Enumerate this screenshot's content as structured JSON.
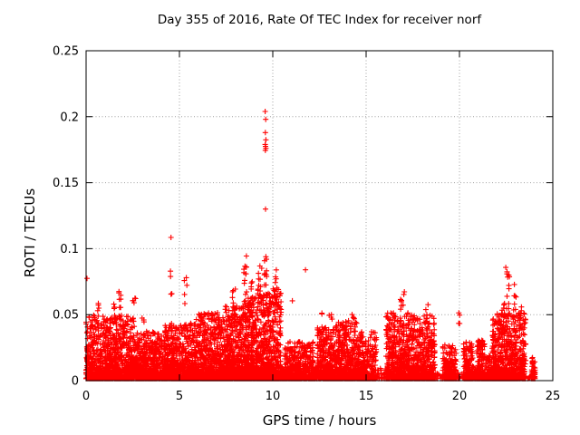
{
  "background": "#ffffff",
  "chart_data": {
    "type": "scatter",
    "title": "Day 355 of 2016, Rate Of TEC Index for receiver norf",
    "xlabel": "GPS time / hours",
    "ylabel": "ROTI / TECUs",
    "xlim": [
      0,
      25
    ],
    "ylim": [
      0,
      0.25
    ],
    "xtick_values": [
      0,
      5,
      10,
      15,
      20,
      25
    ],
    "xtick_labels": [
      "0",
      "5",
      "10",
      "15",
      "20",
      "25"
    ],
    "ytick_values": [
      0,
      0.05,
      0.1,
      0.15,
      0.2,
      0.25
    ],
    "ytick_labels": [
      "0",
      "0.05",
      "0.1",
      "0.15",
      "0.2",
      "0.25"
    ],
    "grid": "dotted",
    "legend": "none",
    "marker": "plus",
    "marker_color": "#ff0000",
    "grid_color": "#a0a0a0",
    "axis_color": "#000000",
    "series_name": "ROTI",
    "band_format": "[t_start_hr, t_end_hr, n_points, y_max_TECU] - dense scatter mass hugging y=0",
    "dense_bands": [
      [
        0.0,
        2.6,
        1100,
        0.048
      ],
      [
        2.6,
        4.2,
        640,
        0.036
      ],
      [
        4.2,
        5.9,
        700,
        0.042
      ],
      [
        5.9,
        7.45,
        720,
        0.05
      ],
      [
        7.45,
        8.3,
        420,
        0.055
      ],
      [
        8.3,
        9.1,
        420,
        0.062
      ],
      [
        9.1,
        10.45,
        660,
        0.068
      ],
      [
        10.45,
        10.62,
        40,
        0.012
      ],
      [
        10.62,
        12.18,
        520,
        0.028
      ],
      [
        12.18,
        12.38,
        35,
        0.01
      ],
      [
        12.38,
        13.5,
        420,
        0.04
      ],
      [
        13.5,
        14.5,
        400,
        0.044
      ],
      [
        14.5,
        15.55,
        380,
        0.036
      ],
      [
        15.55,
        16.05,
        25,
        0.008
      ],
      [
        16.05,
        17.45,
        520,
        0.05
      ],
      [
        17.45,
        18.68,
        460,
        0.048
      ],
      [
        18.68,
        19.1,
        12,
        0.006
      ],
      [
        19.1,
        19.82,
        240,
        0.026
      ],
      [
        19.82,
        20.22,
        14,
        0.008
      ],
      [
        20.22,
        20.72,
        170,
        0.028
      ],
      [
        20.72,
        20.92,
        25,
        0.01
      ],
      [
        20.92,
        21.38,
        160,
        0.03
      ],
      [
        21.38,
        21.75,
        90,
        0.018
      ],
      [
        21.75,
        23.55,
        800,
        0.05
      ],
      [
        23.55,
        23.85,
        8,
        0.005
      ],
      [
        23.85,
        24.05,
        70,
        0.016
      ]
    ],
    "spike_format": "[t_center_hr, t_spread_hr, n_points, y_min_TECU, y_max_TECU] - vertical bursts above the band",
    "spike_clusters": [
      [
        0.62,
        0.08,
        6,
        0.044,
        0.06
      ],
      [
        1.5,
        0.1,
        7,
        0.046,
        0.063
      ],
      [
        1.82,
        0.08,
        7,
        0.055,
        0.0735
      ],
      [
        2.58,
        0.08,
        5,
        0.052,
        0.07
      ],
      [
        3.05,
        0.06,
        3,
        0.04,
        0.05
      ],
      [
        4.55,
        0.05,
        3,
        0.06,
        0.08
      ],
      [
        5.32,
        0.08,
        5,
        0.058,
        0.078
      ],
      [
        6.3,
        0.1,
        4,
        0.042,
        0.052
      ],
      [
        7.15,
        0.08,
        4,
        0.042,
        0.051
      ],
      [
        7.9,
        0.12,
        8,
        0.045,
        0.0735
      ],
      [
        8.5,
        0.1,
        16,
        0.048,
        0.103
      ],
      [
        8.88,
        0.08,
        9,
        0.048,
        0.085
      ],
      [
        9.3,
        0.12,
        10,
        0.046,
        0.091
      ],
      [
        9.6,
        0.07,
        14,
        0.045,
        0.098
      ],
      [
        10.18,
        0.1,
        9,
        0.045,
        0.089
      ],
      [
        10.35,
        0.05,
        3,
        0.04,
        0.055
      ],
      [
        12.6,
        0.05,
        2,
        0.048,
        0.054
      ],
      [
        13.1,
        0.08,
        4,
        0.04,
        0.052
      ],
      [
        14.3,
        0.12,
        5,
        0.042,
        0.051
      ],
      [
        16.55,
        0.1,
        4,
        0.04,
        0.049
      ],
      [
        16.9,
        0.12,
        8,
        0.044,
        0.0675
      ],
      [
        18.2,
        0.12,
        6,
        0.042,
        0.062
      ],
      [
        20.0,
        0.12,
        4,
        0.04,
        0.052
      ],
      [
        22.35,
        0.1,
        6,
        0.048,
        0.064
      ],
      [
        22.6,
        0.08,
        12,
        0.045,
        0.086
      ],
      [
        22.95,
        0.1,
        7,
        0.045,
        0.0745
      ],
      [
        23.25,
        0.08,
        5,
        0.04,
        0.058
      ]
    ],
    "outlier_format": "[t_hr, y_TECU] - individually visible points",
    "outlier_points": [
      [
        0.05,
        0.0775
      ],
      [
        4.52,
        0.083
      ],
      [
        4.55,
        0.1085
      ],
      [
        9.59,
        0.204
      ],
      [
        9.62,
        0.198
      ],
      [
        9.6,
        0.188
      ],
      [
        9.63,
        0.1825
      ],
      [
        9.59,
        0.179
      ],
      [
        9.61,
        0.1775
      ],
      [
        9.63,
        0.176
      ],
      [
        9.6,
        0.1745
      ],
      [
        9.61,
        0.13
      ],
      [
        11.05,
        0.0605
      ],
      [
        11.75,
        0.084
      ],
      [
        17.05,
        0.0673
      ],
      [
        22.48,
        0.0858
      ],
      [
        22.55,
        0.0825
      ]
    ]
  }
}
